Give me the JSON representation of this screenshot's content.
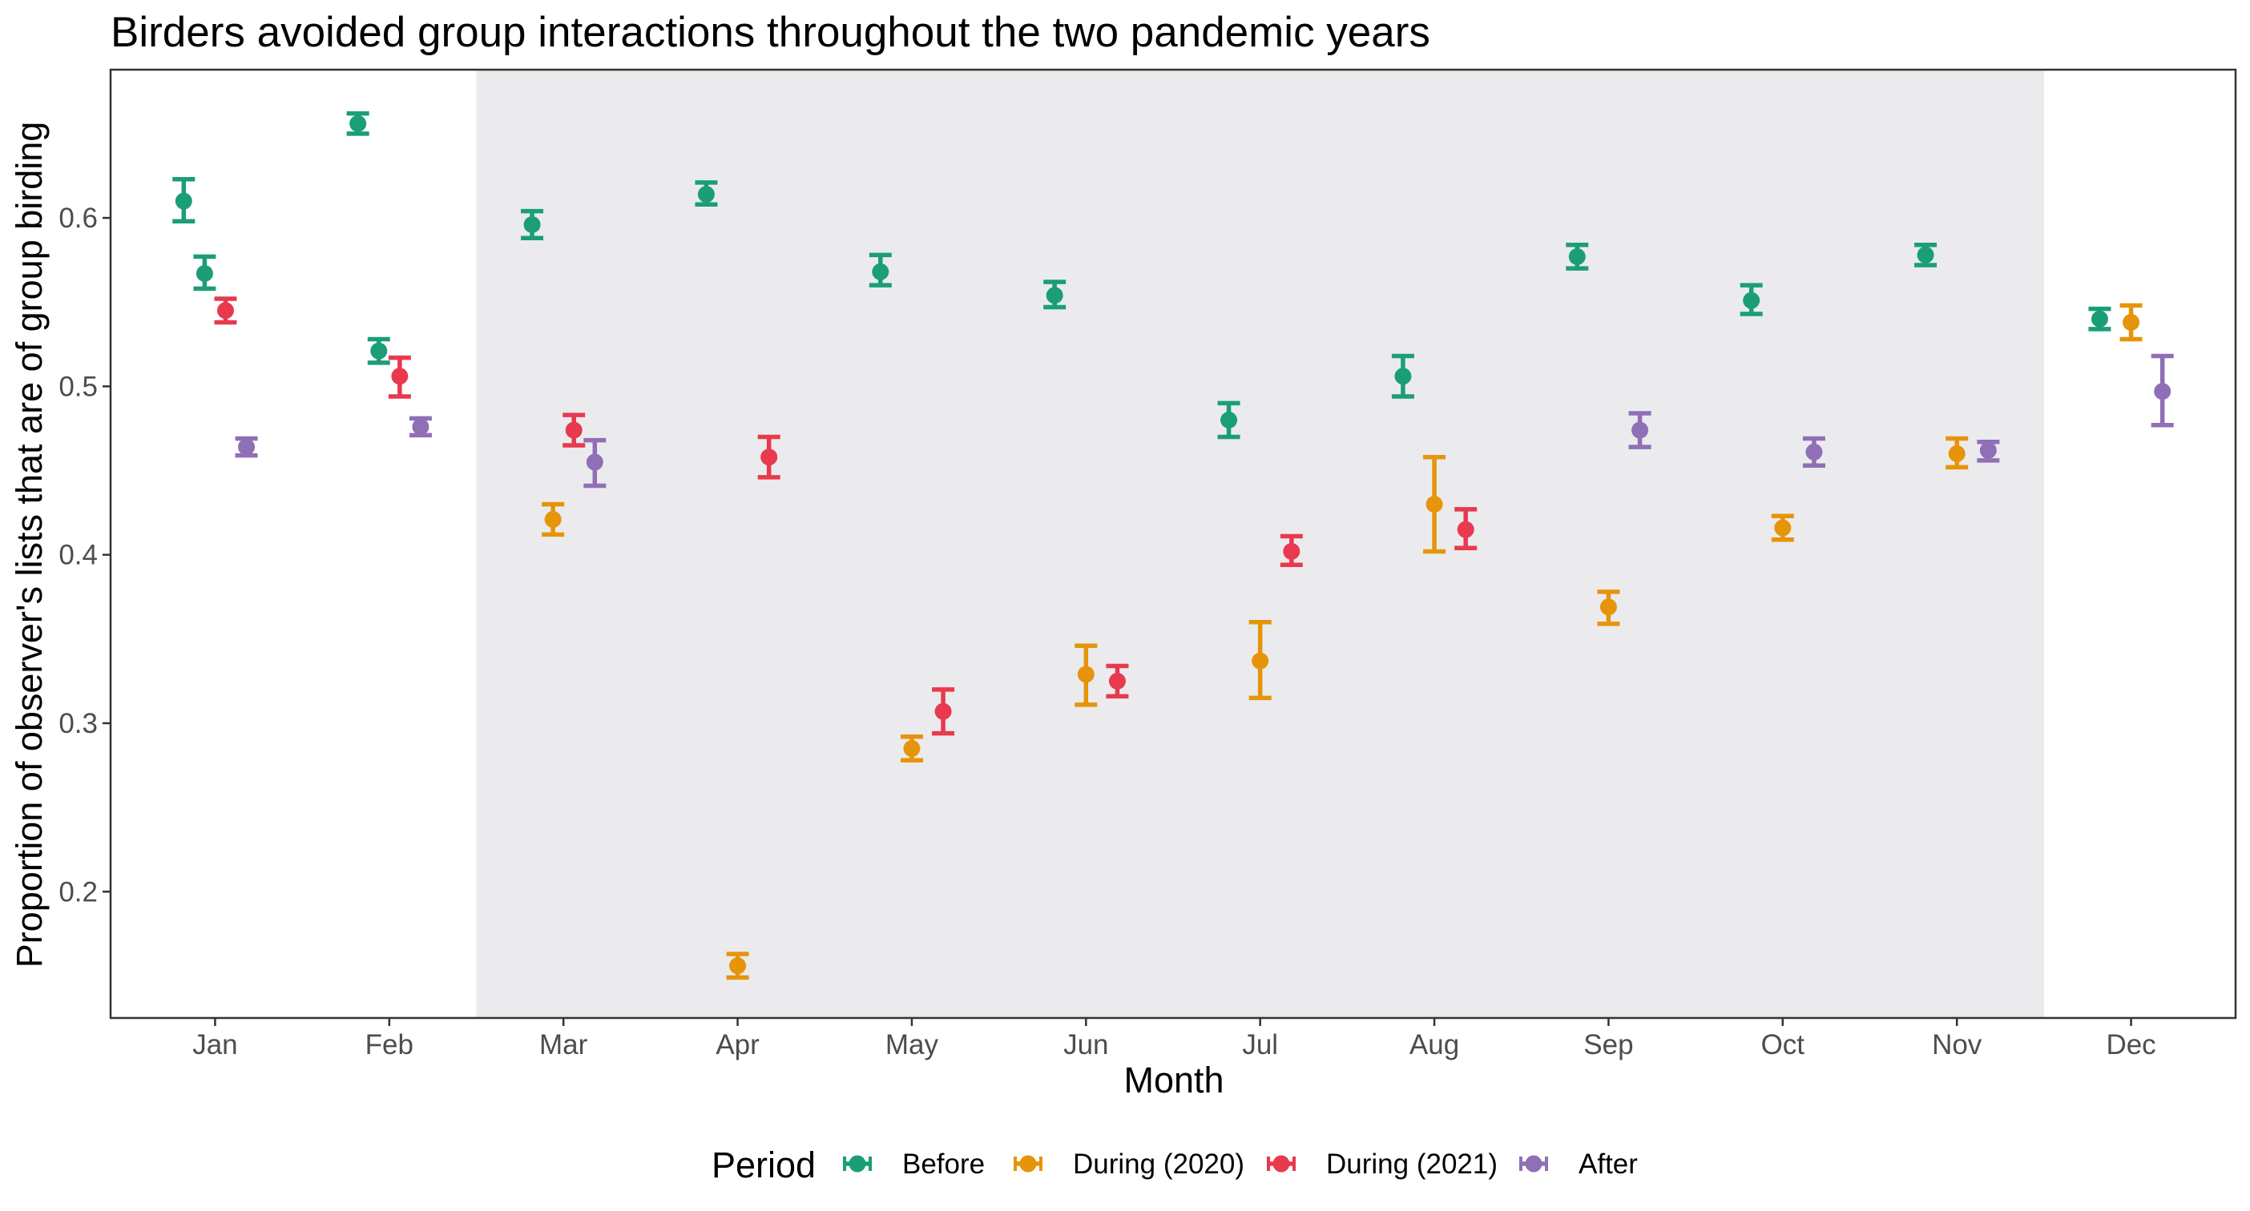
{
  "chart_data": {
    "type": "scatter",
    "title": "Birders avoided group interactions throughout the two pandemic years",
    "xlabel": "Month",
    "ylabel": "Proportion of observer's lists that are of group birding",
    "categories": [
      "Jan",
      "Feb",
      "Mar",
      "Apr",
      "May",
      "Jun",
      "Jul",
      "Aug",
      "Sep",
      "Oct",
      "Nov",
      "Dec"
    ],
    "ylim": [
      0.125,
      0.688
    ],
    "yticks": [
      0.2,
      0.3,
      0.4,
      0.5,
      0.6
    ],
    "ytick_labels": [
      "0.2",
      "0.3",
      "0.4",
      "0.5",
      "0.6"
    ],
    "grid": false,
    "error_bars": true,
    "shaded_region": {
      "from": "Mar",
      "to": "Nov",
      "color": "#ebebee"
    },
    "legend": {
      "title": "Period",
      "position": "bottom"
    },
    "series": [
      {
        "name": "Before",
        "color": "#1b9e77",
        "points": [
          {
            "x": "Jan",
            "y": 0.61,
            "lo": 0.598,
            "hi": 0.623
          },
          {
            "x": "Jan",
            "y": 0.567,
            "lo": 0.558,
            "hi": 0.577
          },
          {
            "x": "Feb",
            "y": 0.656,
            "lo": 0.65,
            "hi": 0.662
          },
          {
            "x": "Feb",
            "y": 0.521,
            "lo": 0.514,
            "hi": 0.528
          },
          {
            "x": "Mar",
            "y": 0.596,
            "lo": 0.588,
            "hi": 0.604
          },
          {
            "x": "Apr",
            "y": 0.614,
            "lo": 0.608,
            "hi": 0.621
          },
          {
            "x": "May",
            "y": 0.568,
            "lo": 0.56,
            "hi": 0.578
          },
          {
            "x": "Jun",
            "y": 0.554,
            "lo": 0.547,
            "hi": 0.562
          },
          {
            "x": "Jul",
            "y": 0.48,
            "lo": 0.47,
            "hi": 0.49
          },
          {
            "x": "Aug",
            "y": 0.506,
            "lo": 0.494,
            "hi": 0.518
          },
          {
            "x": "Sep",
            "y": 0.577,
            "lo": 0.57,
            "hi": 0.584
          },
          {
            "x": "Oct",
            "y": 0.551,
            "lo": 0.543,
            "hi": 0.56
          },
          {
            "x": "Nov",
            "y": 0.578,
            "lo": 0.572,
            "hi": 0.584
          },
          {
            "x": "Dec",
            "y": 0.54,
            "lo": 0.534,
            "hi": 0.546
          }
        ]
      },
      {
        "name": "During (2020)",
        "color": "#e6940a",
        "points": [
          {
            "x": "Mar",
            "y": 0.421,
            "lo": 0.412,
            "hi": 0.43
          },
          {
            "x": "Apr",
            "y": 0.156,
            "lo": 0.149,
            "hi": 0.163
          },
          {
            "x": "May",
            "y": 0.285,
            "lo": 0.278,
            "hi": 0.292
          },
          {
            "x": "Jun",
            "y": 0.329,
            "lo": 0.311,
            "hi": 0.346
          },
          {
            "x": "Jul",
            "y": 0.337,
            "lo": 0.315,
            "hi": 0.36
          },
          {
            "x": "Aug",
            "y": 0.43,
            "lo": 0.402,
            "hi": 0.458
          },
          {
            "x": "Sep",
            "y": 0.369,
            "lo": 0.359,
            "hi": 0.378
          },
          {
            "x": "Oct",
            "y": 0.416,
            "lo": 0.409,
            "hi": 0.423
          },
          {
            "x": "Nov",
            "y": 0.46,
            "lo": 0.452,
            "hi": 0.469
          },
          {
            "x": "Dec",
            "y": 0.538,
            "lo": 0.528,
            "hi": 0.548
          }
        ]
      },
      {
        "name": "During (2021)",
        "color": "#e8394e",
        "points": [
          {
            "x": "Jan",
            "y": 0.545,
            "lo": 0.538,
            "hi": 0.552
          },
          {
            "x": "Feb",
            "y": 0.506,
            "lo": 0.494,
            "hi": 0.517
          },
          {
            "x": "Mar",
            "y": 0.474,
            "lo": 0.465,
            "hi": 0.483
          },
          {
            "x": "Apr",
            "y": 0.458,
            "lo": 0.446,
            "hi": 0.47
          },
          {
            "x": "May",
            "y": 0.307,
            "lo": 0.294,
            "hi": 0.32
          },
          {
            "x": "Jun",
            "y": 0.325,
            "lo": 0.316,
            "hi": 0.334
          },
          {
            "x": "Jul",
            "y": 0.402,
            "lo": 0.394,
            "hi": 0.411
          },
          {
            "x": "Aug",
            "y": 0.415,
            "lo": 0.404,
            "hi": 0.427
          }
        ]
      },
      {
        "name": "After",
        "color": "#8f6fb5",
        "points": [
          {
            "x": "Jan",
            "y": 0.464,
            "lo": 0.459,
            "hi": 0.469
          },
          {
            "x": "Feb",
            "y": 0.476,
            "lo": 0.471,
            "hi": 0.481
          },
          {
            "x": "Mar",
            "y": 0.455,
            "lo": 0.441,
            "hi": 0.468
          },
          {
            "x": "Sep",
            "y": 0.474,
            "lo": 0.464,
            "hi": 0.484
          },
          {
            "x": "Oct",
            "y": 0.461,
            "lo": 0.453,
            "hi": 0.469
          },
          {
            "x": "Nov",
            "y": 0.462,
            "lo": 0.456,
            "hi": 0.467
          },
          {
            "x": "Dec",
            "y": 0.497,
            "lo": 0.477,
            "hi": 0.518
          }
        ]
      }
    ]
  }
}
